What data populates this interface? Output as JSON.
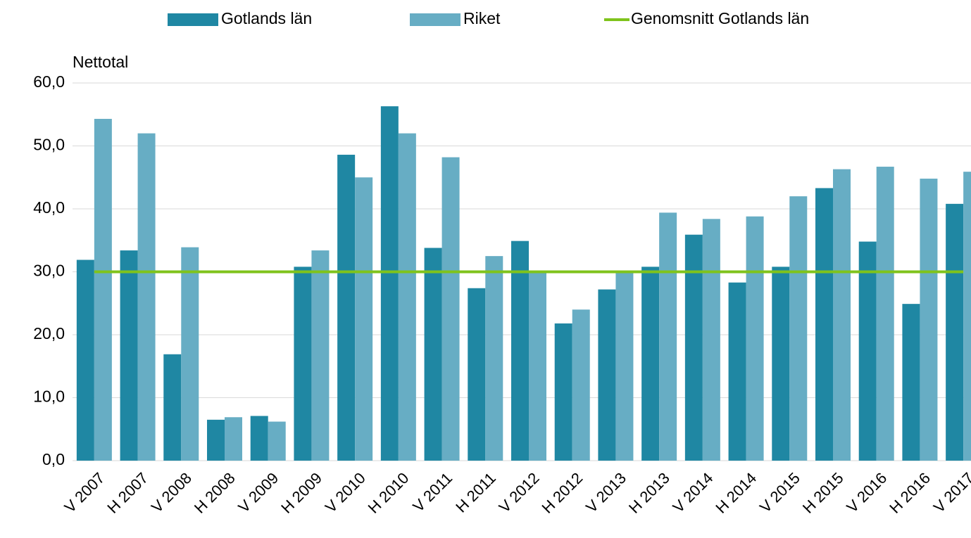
{
  "chart_data": {
    "type": "bar",
    "y_label": "Nettotal",
    "categories": [
      "V 2007",
      "H 2007",
      "V 2008",
      "H 2008",
      "V 2009",
      "H 2009",
      "V 2010",
      "H 2010",
      "V 2011",
      "H 2011",
      "V 2012",
      "H 2012",
      "V 2013",
      "H 2013",
      "V 2014",
      "H 2014",
      "V 2015",
      "H 2015",
      "V 2016",
      "H 2016",
      "V 2017"
    ],
    "series": [
      {
        "name": "Gotlands län",
        "type": "bar",
        "color": "#1f87a3",
        "values": [
          31.9,
          33.4,
          16.9,
          6.5,
          7.1,
          30.8,
          48.6,
          56.3,
          33.8,
          27.4,
          34.9,
          21.8,
          27.2,
          30.8,
          35.9,
          28.3,
          30.8,
          43.3,
          34.8,
          24.9,
          40.8
        ]
      },
      {
        "name": "Riket",
        "type": "bar",
        "color": "#67adc4",
        "values": [
          54.3,
          52.0,
          33.9,
          6.9,
          6.2,
          33.4,
          45.0,
          52.0,
          48.2,
          32.5,
          30.0,
          24.0,
          30.1,
          39.4,
          38.4,
          38.8,
          42.0,
          46.3,
          46.7,
          44.8,
          45.9
        ]
      },
      {
        "name": "Genomsnitt Gotlands län",
        "type": "line",
        "color": "#7fc31c",
        "values": [
          30.0,
          30.0,
          30.0,
          30.0,
          30.0,
          30.0,
          30.0,
          30.0,
          30.0,
          30.0,
          30.0,
          30.0,
          30.0,
          30.0,
          30.0,
          30.0,
          30.0,
          30.0,
          30.0,
          30.0,
          30.0
        ]
      }
    ],
    "ylim": [
      0,
      60
    ],
    "yticks": [
      {
        "value": 0,
        "label": "0,0"
      },
      {
        "value": 10,
        "label": "10,0"
      },
      {
        "value": 20,
        "label": "20,0"
      },
      {
        "value": 30,
        "label": "30,0"
      },
      {
        "value": 40,
        "label": "40,0"
      },
      {
        "value": 50,
        "label": "50,0"
      },
      {
        "value": 60,
        "label": "60,0"
      }
    ],
    "grid": true,
    "legend": "top"
  }
}
